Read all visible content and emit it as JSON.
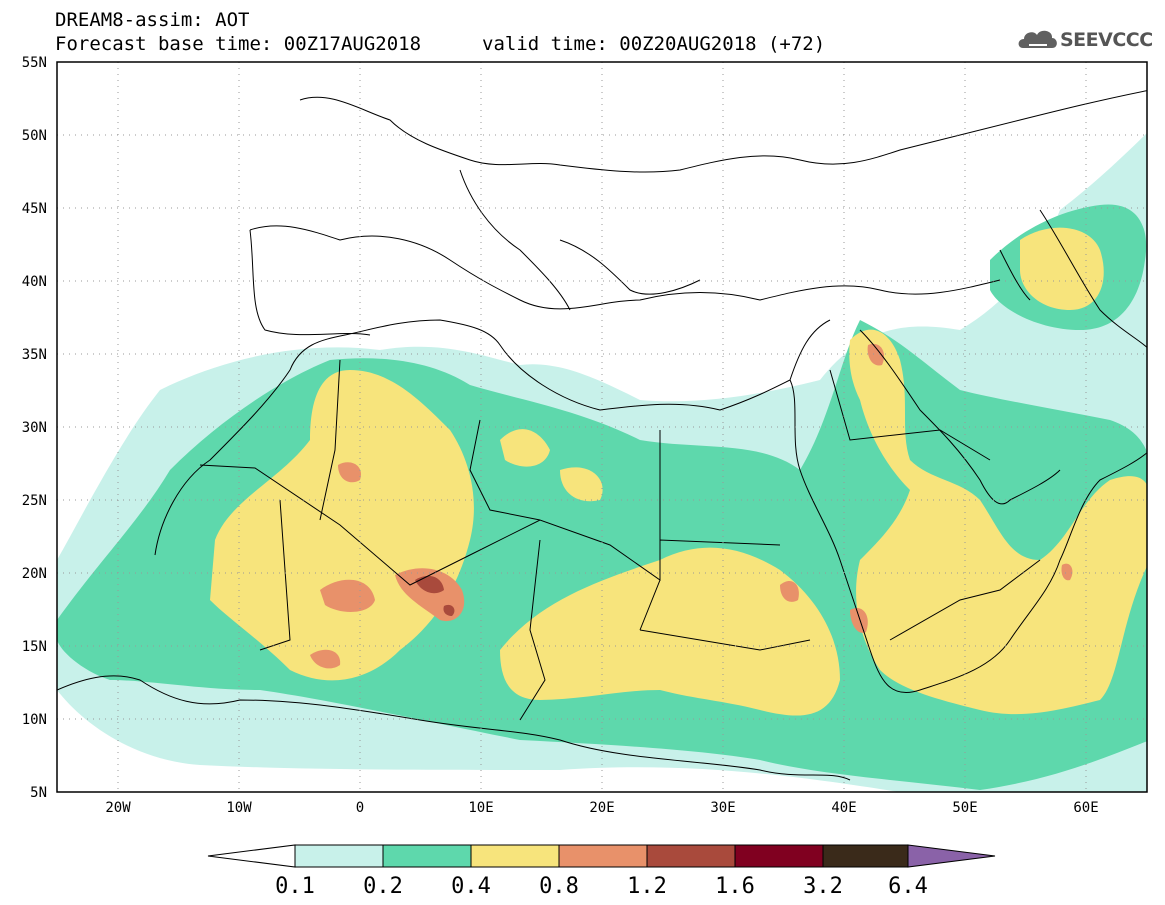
{
  "header": {
    "title": "DREAM8-assim: AOT",
    "base_time": "Forecast base time: 00Z17AUG2018",
    "valid_time": "valid time: 00Z20AUG2018 (+72)",
    "logo": "SEEVCCC"
  },
  "map": {
    "lon_range": [
      -25,
      65
    ],
    "lat_range": [
      5,
      55
    ],
    "lat_labels": [
      "5N",
      "10N",
      "15N",
      "20N",
      "25N",
      "30N",
      "35N",
      "40N",
      "45N",
      "50N",
      "55N"
    ],
    "lon_labels": [
      "20W",
      "10W",
      "0",
      "10E",
      "20E",
      "30E",
      "40E",
      "50E",
      "60E"
    ]
  },
  "colorbar": {
    "labels": [
      "0.1",
      "0.2",
      "0.4",
      "0.8",
      "1.2",
      "1.6",
      "3.2",
      "6.4"
    ],
    "colors": [
      "#ffffff",
      "#c8f1ea",
      "#5ed8ac",
      "#f7e47c",
      "#e8916a",
      "#a94a3c",
      "#800020",
      "#3a2a1a",
      "#8a62a8"
    ]
  }
}
